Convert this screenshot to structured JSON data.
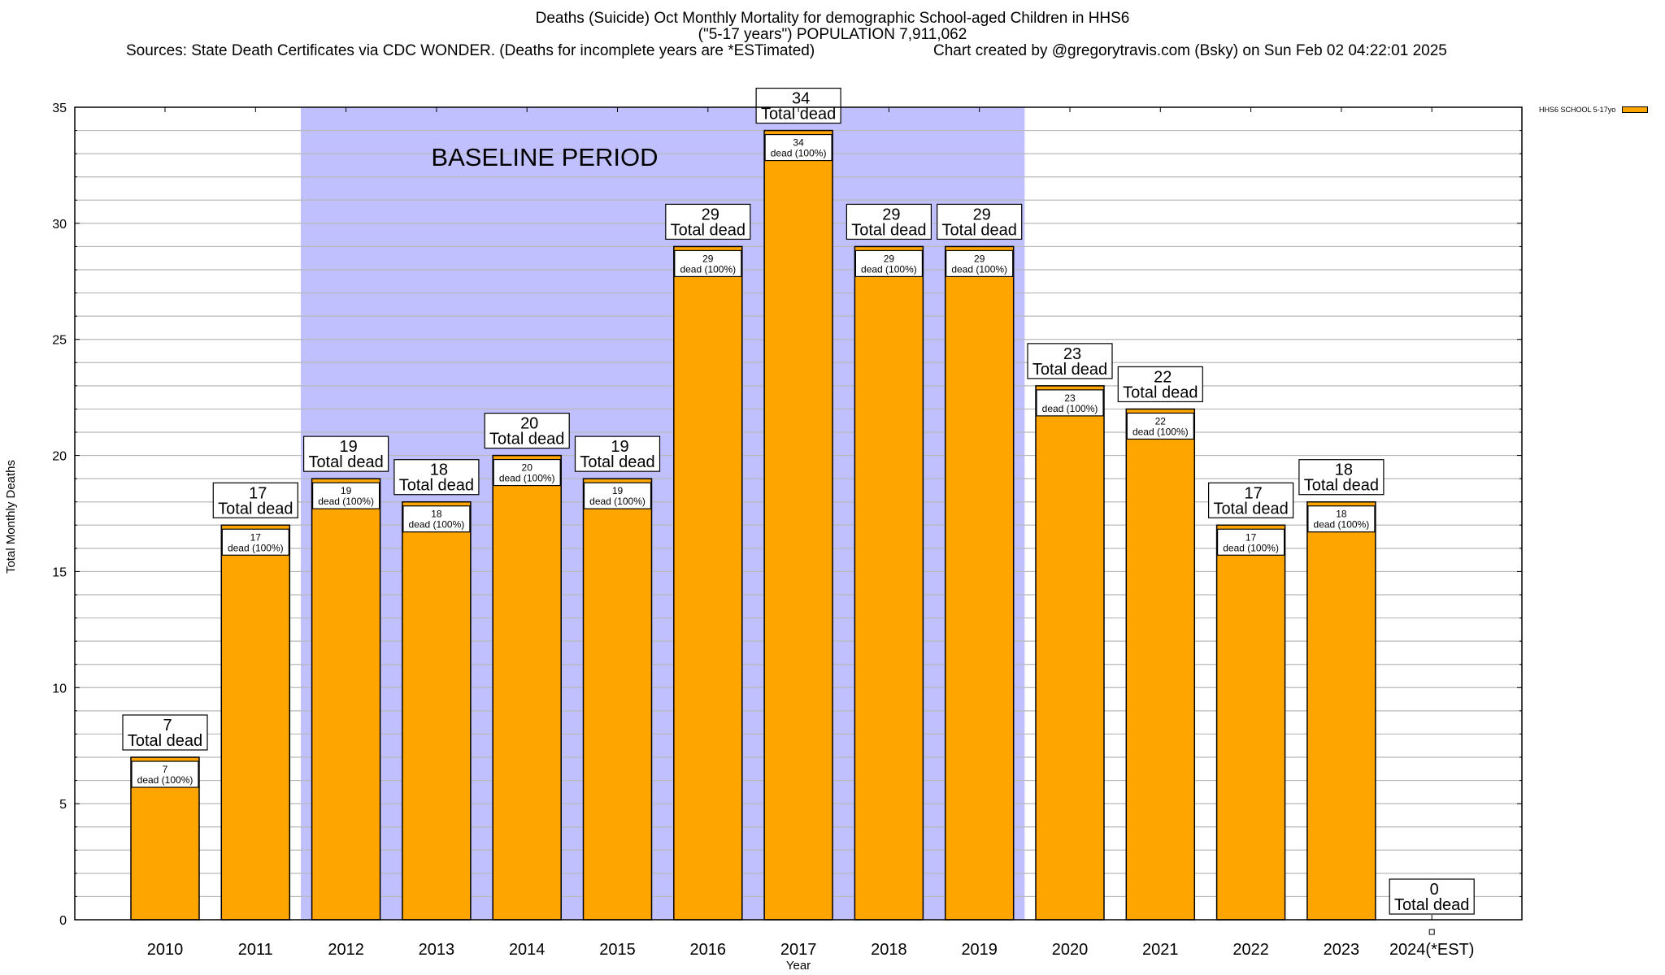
{
  "chart_data": {
    "type": "bar",
    "title": "Deaths (Suicide) Oct Monthly Mortality for demographic School-aged Children in HHS6",
    "subtitle": "(\"5-17 years\") POPULATION 7,911,062",
    "sources": "Sources: State Death Certificates via CDC WONDER. (Deaths for incomplete years are *ESTimated)",
    "credit": "Chart created by @gregorytravis.com (Bsky) on Sun Feb 02 04:22:01 2025",
    "xlabel": "Year",
    "ylabel": "Total Monthly Deaths",
    "ylim": [
      0,
      35
    ],
    "yticks": [
      "0",
      "5",
      "10",
      "15",
      "20",
      "25",
      "30",
      "35"
    ],
    "grid": true,
    "categories": [
      "2010",
      "2011",
      "2012",
      "2013",
      "2014",
      "2015",
      "2016",
      "2017",
      "2018",
      "2019",
      "2020",
      "2021",
      "2022",
      "2023",
      "2024(*EST)"
    ],
    "series": [
      {
        "name": "HHS6 SCHOOL 5-17yo",
        "color": "#FFA500",
        "values": [
          7,
          17,
          19,
          18,
          20,
          19,
          29,
          34,
          29,
          29,
          23,
          22,
          17,
          18,
          0
        ]
      }
    ],
    "total_label": "Total dead",
    "inner_label": "dead (100%)",
    "legend_position": "top-right",
    "annotation": {
      "text": "BASELINE PERIOD",
      "range": [
        "2012",
        "2019"
      ],
      "color": "#C0C0FF"
    }
  }
}
